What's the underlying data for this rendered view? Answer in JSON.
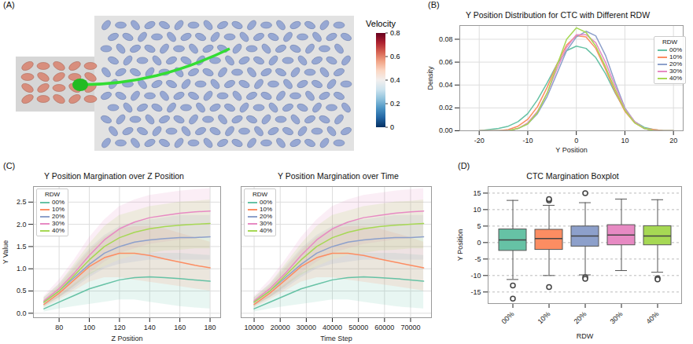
{
  "chart_data": [
    {
      "type": "image",
      "panel": "(A)",
      "colorbar": {
        "title": "Velocity",
        "range": [
          0,
          0.8
        ],
        "ticks": [
          0,
          0.2,
          0.4,
          0.6,
          0.8
        ]
      }
    },
    {
      "type": "line",
      "panel": "(B)",
      "title": "Y Position Distribution for CTC with Different RDW",
      "x_label": "Y Position",
      "y_label": "Density",
      "legend": "right",
      "legend_title": "RDW",
      "grid": true,
      "x": [
        -20,
        -18,
        -16,
        -14,
        -12,
        -10,
        -8,
        -6,
        -4,
        -2,
        0,
        2,
        4,
        6,
        8,
        10,
        12,
        14,
        16,
        18,
        20
      ],
      "xlim": [
        -24,
        22
      ],
      "xticks": [
        -20,
        -10,
        0,
        10,
        20
      ],
      "ylim": [
        0,
        0.092
      ],
      "yticks": [
        {
          "value": 0,
          "label": "0.00"
        },
        {
          "value": 0.02,
          "label": "0.02"
        },
        {
          "value": 0.04,
          "label": "0.04"
        },
        {
          "value": 0.06,
          "label": "0.06"
        },
        {
          "value": 0.08,
          "label": "0.08"
        }
      ],
      "series": [
        {
          "name": "00%",
          "color": "#66c2a5",
          "values": [
            0,
            0.001,
            0.002,
            0.004,
            0.008,
            0.015,
            0.027,
            0.042,
            0.058,
            0.07,
            0.074,
            0.072,
            0.064,
            0.05,
            0.033,
            0.018,
            0.008,
            0.003,
            0.001,
            0,
            0
          ]
        },
        {
          "name": "10%",
          "color": "#fc8d62",
          "values": [
            0,
            0,
            0,
            0.001,
            0.004,
            0.01,
            0.021,
            0.038,
            0.058,
            0.075,
            0.083,
            0.082,
            0.072,
            0.054,
            0.034,
            0.017,
            0.007,
            0.002,
            0.001,
            0,
            0
          ]
        },
        {
          "name": "20%",
          "color": "#8da0cb",
          "values": [
            0,
            0,
            0,
            0,
            0.002,
            0.006,
            0.015,
            0.03,
            0.05,
            0.07,
            0.082,
            0.087,
            0.083,
            0.066,
            0.042,
            0.02,
            0.008,
            0.002,
            0,
            0,
            0
          ]
        },
        {
          "name": "30%",
          "color": "#e78ac3",
          "values": [
            0,
            0,
            0,
            0,
            0.002,
            0.007,
            0.017,
            0.033,
            0.054,
            0.073,
            0.084,
            0.084,
            0.077,
            0.06,
            0.039,
            0.019,
            0.008,
            0.002,
            0,
            0,
            0
          ]
        },
        {
          "name": "40%",
          "color": "#a6d854",
          "values": [
            0,
            0,
            0,
            0,
            0.002,
            0.006,
            0.016,
            0.033,
            0.057,
            0.08,
            0.09,
            0.086,
            0.074,
            0.056,
            0.036,
            0.018,
            0.007,
            0.002,
            0,
            0,
            0
          ]
        }
      ]
    },
    {
      "type": "line",
      "panel": "(C)",
      "title": "Y Position Margination over Z Position",
      "x_label": "Z Position",
      "y_label": "Y Value",
      "legend": "upper left",
      "legend_title": "RDW",
      "grid": true,
      "x": [
        70,
        80,
        90,
        100,
        110,
        120,
        130,
        140,
        150,
        160,
        170,
        180
      ],
      "xlim": [
        63,
        187
      ],
      "xticks": [
        80,
        100,
        120,
        140,
        160,
        180
      ],
      "ylim": [
        -0.1,
        2.85
      ],
      "yticks": [
        {
          "value": 0,
          "label": "0.0"
        },
        0.5,
        {
          "value": 1,
          "label": "1.0"
        },
        1.5,
        {
          "value": 2,
          "label": "2.0"
        },
        2.5
      ],
      "series": [
        {
          "name": "00%",
          "color": "#66c2a5",
          "values": [
            0.1,
            0.25,
            0.4,
            0.55,
            0.65,
            0.75,
            0.8,
            0.82,
            0.8,
            0.78,
            0.75,
            0.72
          ],
          "lower": [
            0.03,
            0.1,
            0.15,
            0.2,
            0.25,
            0.3,
            0.3,
            0.25,
            0.2,
            0.15,
            0.12,
            0.1
          ],
          "upper": [
            0.18,
            0.4,
            0.65,
            0.9,
            1.05,
            1.2,
            1.3,
            1.35,
            1.35,
            1.35,
            1.32,
            1.3
          ]
        },
        {
          "name": "10%",
          "color": "#fc8d62",
          "values": [
            0.2,
            0.45,
            0.75,
            1.05,
            1.25,
            1.35,
            1.35,
            1.3,
            1.22,
            1.15,
            1.08,
            1.02
          ],
          "lower": [
            0.12,
            0.3,
            0.5,
            0.7,
            0.8,
            0.8,
            0.75,
            0.7,
            0.65,
            0.6,
            0.55,
            0.5
          ],
          "upper": [
            0.3,
            0.6,
            1.0,
            1.4,
            1.7,
            1.9,
            1.95,
            1.95,
            1.9,
            1.8,
            1.7,
            1.6
          ]
        },
        {
          "name": "20%",
          "color": "#8da0cb",
          "values": [
            0.25,
            0.5,
            0.8,
            1.1,
            1.35,
            1.5,
            1.6,
            1.65,
            1.68,
            1.7,
            1.7,
            1.72
          ],
          "lower": [
            0.15,
            0.35,
            0.55,
            0.8,
            1.0,
            1.1,
            1.15,
            1.2,
            1.2,
            1.2,
            1.2,
            1.2
          ],
          "upper": [
            0.35,
            0.65,
            1.05,
            1.45,
            1.75,
            1.95,
            2.05,
            2.1,
            2.15,
            2.2,
            2.2,
            2.2
          ]
        },
        {
          "name": "30%",
          "color": "#e78ac3",
          "values": [
            0.28,
            0.55,
            0.9,
            1.3,
            1.65,
            1.9,
            2.05,
            2.15,
            2.2,
            2.25,
            2.28,
            2.3
          ],
          "lower": [
            0.18,
            0.35,
            0.6,
            0.9,
            1.15,
            1.35,
            1.45,
            1.55,
            1.6,
            1.65,
            1.68,
            1.7
          ],
          "upper": [
            0.38,
            0.75,
            1.2,
            1.7,
            2.1,
            2.4,
            2.55,
            2.65,
            2.7,
            2.75,
            2.78,
            2.8
          ]
        },
        {
          "name": "40%",
          "color": "#a6d854",
          "values": [
            0.25,
            0.5,
            0.85,
            1.2,
            1.5,
            1.7,
            1.82,
            1.9,
            1.95,
            1.98,
            2.0,
            2.02
          ],
          "lower": [
            0.15,
            0.35,
            0.6,
            0.85,
            1.05,
            1.2,
            1.3,
            1.35,
            1.4,
            1.42,
            1.45,
            1.45
          ],
          "upper": [
            0.35,
            0.65,
            1.1,
            1.55,
            1.95,
            2.2,
            2.3,
            2.4,
            2.45,
            2.5,
            2.52,
            2.55
          ]
        }
      ]
    },
    {
      "type": "line",
      "title": "Y Position Margination over Time",
      "x_label": "Time Step",
      "legend": "upper left",
      "legend_title": "RDW",
      "grid": true,
      "tick_labels": "x",
      "x": [
        10000,
        16000,
        22000,
        28000,
        34000,
        40000,
        46000,
        52000,
        58000,
        64000,
        70000,
        75000
      ],
      "xlim": [
        5000,
        78000
      ],
      "xticks": [
        10000,
        20000,
        30000,
        40000,
        50000,
        60000,
        70000
      ],
      "ylim": [
        -0.1,
        2.85
      ],
      "yticks": [
        0,
        0.5,
        1,
        1.5,
        2,
        2.5
      ],
      "series": [
        {
          "name": "00%",
          "color": "#66c2a5",
          "values": [
            0.1,
            0.25,
            0.4,
            0.55,
            0.65,
            0.75,
            0.8,
            0.82,
            0.8,
            0.78,
            0.75,
            0.72
          ],
          "lower": [
            0.03,
            0.1,
            0.15,
            0.2,
            0.25,
            0.3,
            0.3,
            0.25,
            0.2,
            0.15,
            0.12,
            0.1
          ],
          "upper": [
            0.18,
            0.4,
            0.65,
            0.9,
            1.05,
            1.2,
            1.3,
            1.35,
            1.35,
            1.35,
            1.32,
            1.3
          ]
        },
        {
          "name": "10%",
          "color": "#fc8d62",
          "values": [
            0.2,
            0.45,
            0.75,
            1.05,
            1.25,
            1.35,
            1.35,
            1.3,
            1.22,
            1.15,
            1.08,
            1.02
          ],
          "lower": [
            0.12,
            0.3,
            0.5,
            0.7,
            0.8,
            0.8,
            0.75,
            0.7,
            0.65,
            0.6,
            0.55,
            0.5
          ],
          "upper": [
            0.3,
            0.6,
            1.0,
            1.4,
            1.7,
            1.9,
            1.95,
            1.95,
            1.9,
            1.8,
            1.7,
            1.6
          ]
        },
        {
          "name": "20%",
          "color": "#8da0cb",
          "values": [
            0.25,
            0.5,
            0.8,
            1.1,
            1.35,
            1.5,
            1.6,
            1.65,
            1.68,
            1.7,
            1.7,
            1.72
          ],
          "lower": [
            0.15,
            0.35,
            0.55,
            0.8,
            1.0,
            1.1,
            1.15,
            1.2,
            1.2,
            1.2,
            1.2,
            1.2
          ],
          "upper": [
            0.35,
            0.65,
            1.05,
            1.45,
            1.75,
            1.95,
            2.05,
            2.1,
            2.15,
            2.2,
            2.2,
            2.2
          ]
        },
        {
          "name": "30%",
          "color": "#e78ac3",
          "values": [
            0.28,
            0.55,
            0.9,
            1.3,
            1.65,
            1.9,
            2.05,
            2.15,
            2.2,
            2.25,
            2.28,
            2.3
          ],
          "lower": [
            0.18,
            0.35,
            0.6,
            0.9,
            1.15,
            1.35,
            1.45,
            1.55,
            1.6,
            1.65,
            1.68,
            1.7
          ],
          "upper": [
            0.38,
            0.75,
            1.2,
            1.7,
            2.1,
            2.4,
            2.55,
            2.65,
            2.7,
            2.75,
            2.78,
            2.8
          ]
        },
        {
          "name": "40%",
          "color": "#a6d854",
          "values": [
            0.25,
            0.5,
            0.85,
            1.2,
            1.5,
            1.7,
            1.82,
            1.9,
            1.95,
            1.98,
            2.0,
            2.02
          ],
          "lower": [
            0.15,
            0.35,
            0.6,
            0.85,
            1.05,
            1.2,
            1.3,
            1.35,
            1.4,
            1.42,
            1.45,
            1.45
          ],
          "upper": [
            0.35,
            0.65,
            1.1,
            1.55,
            1.95,
            2.2,
            2.3,
            2.4,
            2.45,
            2.5,
            2.52,
            2.55
          ]
        }
      ]
    },
    {
      "type": "box",
      "panel": "(D)",
      "title": "CTC Margination Boxplot",
      "x_label": "RDW",
      "y_label": "Y Position",
      "grid": true,
      "categories": [
        "00%",
        "10%",
        "20%",
        "30%",
        "40%"
      ],
      "colors": [
        "#66c2a5",
        "#fc8d62",
        "#8da0cb",
        "#e78ac3",
        "#a6d854"
      ],
      "ylim": [
        -18.5,
        17
      ],
      "yticks": [
        -15,
        -10,
        -5,
        0,
        5,
        10,
        15
      ],
      "boxes": [
        {
          "whisker_low": -11.2,
          "q1": -2.5,
          "median": 0.8,
          "q3": 4.0,
          "whisker_high": 12.8,
          "outliers": [
            -13,
            -17
          ]
        },
        {
          "whisker_low": -10.0,
          "q1": -2.2,
          "median": 1.2,
          "q3": 3.9,
          "whisker_high": 11.3,
          "outliers": [
            12.8,
            13.2,
            -13.5
          ]
        },
        {
          "whisker_low": -9.8,
          "q1": -1.2,
          "median": 2.0,
          "q3": 4.9,
          "whisker_high": 12.1,
          "outliers": [
            15,
            -10.5,
            -11
          ]
        },
        {
          "whisker_low": -8.5,
          "q1": -0.8,
          "median": 2.3,
          "q3": 5.3,
          "whisker_high": 13.2,
          "outliers": []
        },
        {
          "whisker_low": -9.0,
          "q1": -0.8,
          "median": 2.0,
          "q3": 5.0,
          "whisker_high": 13.0,
          "outliers": [
            -10.8,
            -11.2
          ]
        }
      ]
    }
  ]
}
